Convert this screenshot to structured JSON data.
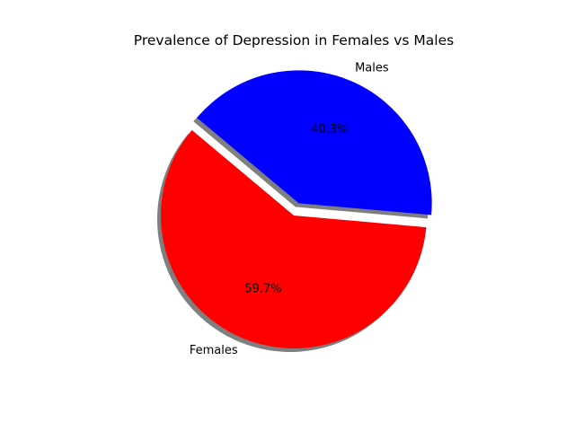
{
  "chart_data": {
    "type": "pie",
    "title": "Prevalence of Depression in Females vs Males",
    "categories": [
      "Females",
      "Males"
    ],
    "values": [
      59.7,
      40.3
    ],
    "percent_labels": [
      "59.7%",
      "40.3%"
    ],
    "colors": [
      "#ff0000",
      "#0000ff"
    ],
    "exploded": [
      false,
      true
    ],
    "shadow": true,
    "legend": "none",
    "grid": false
  }
}
